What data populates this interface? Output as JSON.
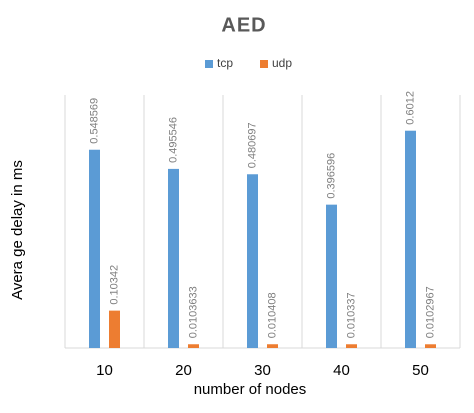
{
  "chart_data": {
    "type": "bar",
    "title": "AED",
    "x_label": "number of nodes",
    "y_label": "Avera ge delay in ms",
    "categories": [
      "10",
      "20",
      "30",
      "40",
      "50"
    ],
    "series": [
      {
        "name": "tcp",
        "color": "#5b9bd5",
        "values": [
          0.548569,
          0.495546,
          0.480697,
          0.396596,
          0.6012
        ]
      },
      {
        "name": "udp",
        "color": "#ed7d31",
        "values": [
          0.10342,
          0.0103633,
          0.010408,
          0.010337,
          0.0102967
        ]
      }
    ],
    "ylim": [
      0,
      0.7
    ],
    "legend": "top"
  }
}
